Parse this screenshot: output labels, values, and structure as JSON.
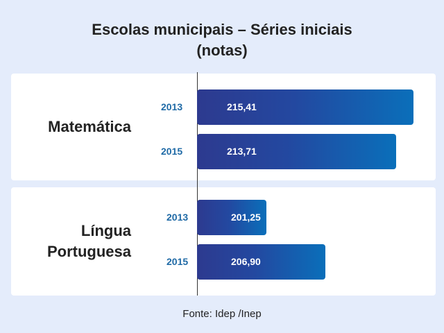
{
  "title_lines": [
    "Escolas municipais – Séries iniciais",
    "(notas)"
  ],
  "source": "Fonte: Idep /Inep",
  "chart_data": {
    "type": "bar",
    "orientation": "horizontal",
    "title": "Escolas municipais – Séries iniciais (notas)",
    "groups": [
      {
        "label_lines": [
          "Matemática"
        ],
        "bars": [
          {
            "year": "2013",
            "value": 215.41,
            "value_label": "215,41"
          },
          {
            "year": "2015",
            "value": 213.71,
            "value_label": "213,71"
          }
        ]
      },
      {
        "label_lines": [
          "Língua",
          "Portuguesa"
        ],
        "bars": [
          {
            "year": "2013",
            "value": 201.25,
            "value_label": "201,25"
          },
          {
            "year": "2015",
            "value": 206.9,
            "value_label": "206,90"
          }
        ]
      }
    ],
    "axis_visible": false,
    "grid": false,
    "legend": "none",
    "colors": {
      "bar_start": "#2d3a8f",
      "bar_end": "#0a6fba",
      "year_label": "#1f6aa6"
    }
  }
}
